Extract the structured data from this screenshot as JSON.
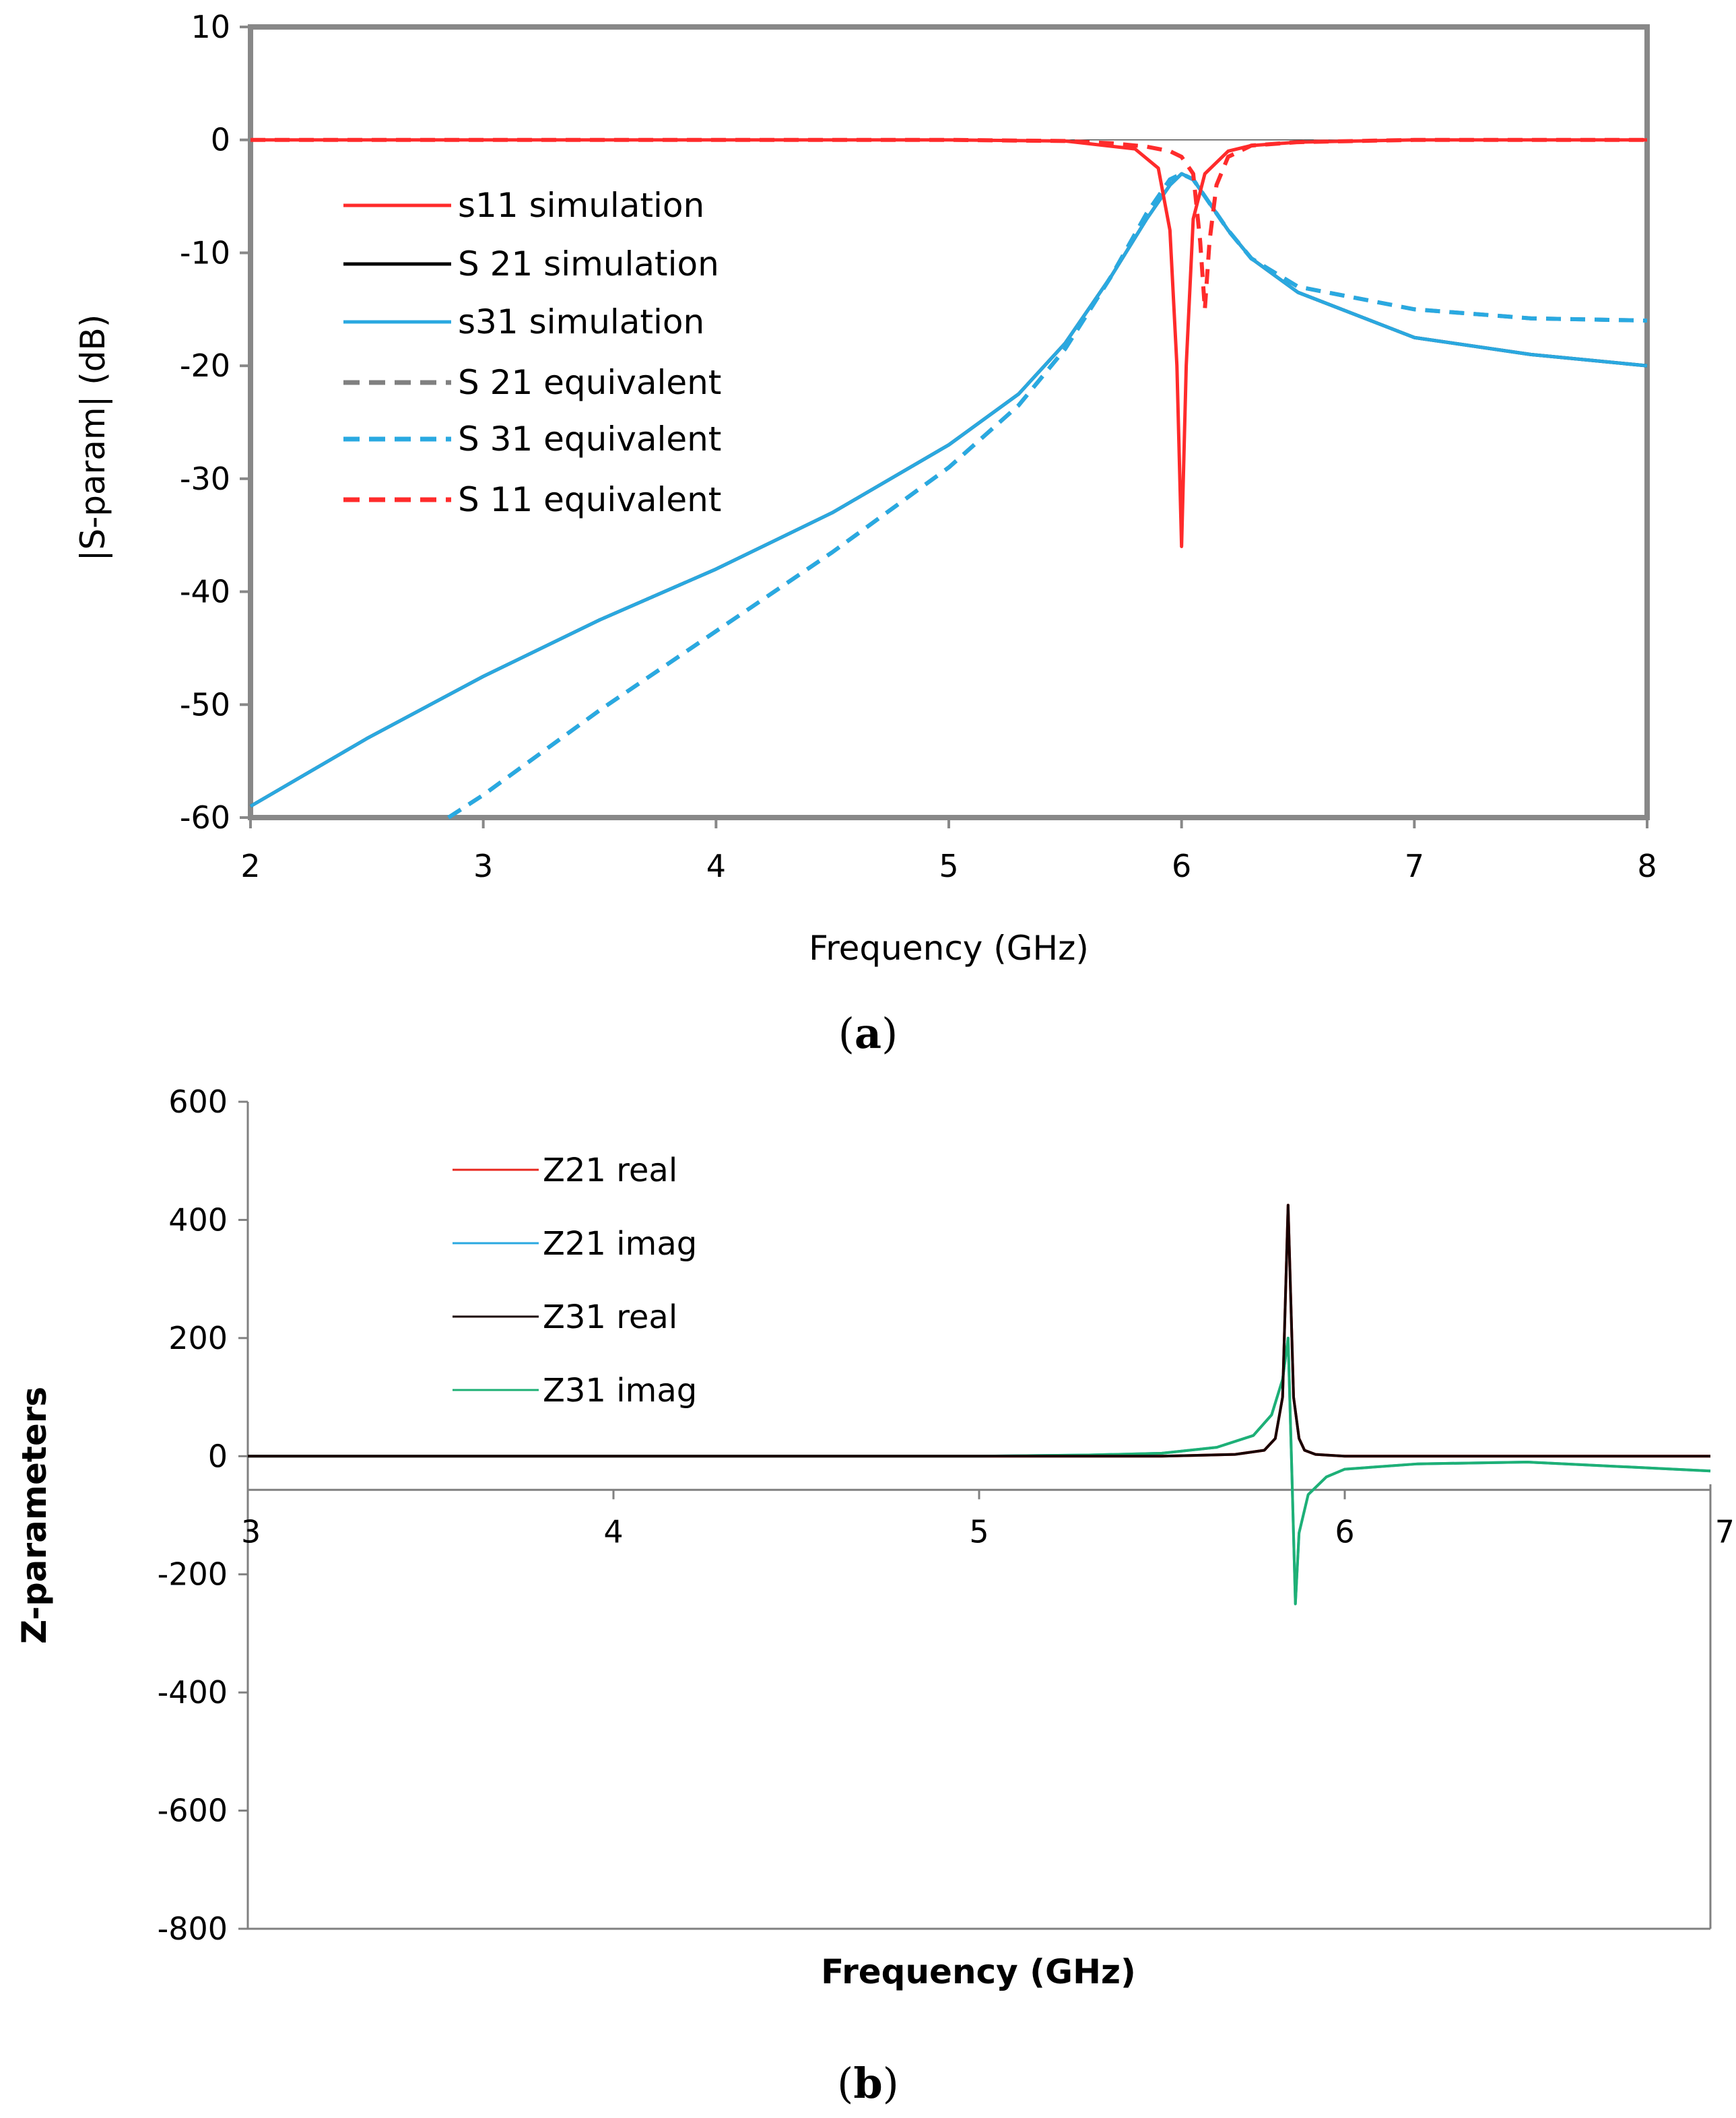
{
  "chart_data": [
    {
      "panel": "(a)",
      "caption_letter": "a",
      "type": "line",
      "xlabel": "Frequency (GHz)",
      "ylabel": "|S-param| (dB)",
      "xlim": [
        2,
        8
      ],
      "ylim": [
        -60,
        10
      ],
      "xticks": [
        2,
        3,
        4,
        5,
        6,
        7,
        8
      ],
      "yticks": [
        10,
        0,
        -10,
        -20,
        -30,
        -40,
        -50,
        -60
      ],
      "series": [
        {
          "name": "s11 simulation",
          "color": "#ff2b2b",
          "dash": "solid",
          "x": [
            2,
            4,
            5,
            5.5,
            5.8,
            5.9,
            5.95,
            5.98,
            6.0,
            6.02,
            6.05,
            6.1,
            6.2,
            6.3,
            6.5,
            7,
            8
          ],
          "y": [
            0,
            0,
            0,
            -0.1,
            -0.8,
            -2.5,
            -8,
            -20,
            -36,
            -20,
            -7,
            -3,
            -1,
            -0.5,
            -0.2,
            0,
            0
          ]
        },
        {
          "name": "S 21 simulation",
          "color": "#000000",
          "dash": "solid",
          "x": [
            2,
            2.5,
            3,
            3.5,
            4,
            4.5,
            5,
            5.3,
            5.5,
            5.7,
            5.85,
            5.95,
            6.0,
            6.05,
            6.1,
            6.2,
            6.3,
            6.5,
            7,
            7.5,
            8
          ],
          "y": [
            -59,
            -53,
            -47.5,
            -42.5,
            -38,
            -33,
            -27,
            -22.5,
            -18,
            -12,
            -7,
            -4,
            -3,
            -3.5,
            -5,
            -8,
            -10.5,
            -13.5,
            -17.5,
            -19,
            -20
          ]
        },
        {
          "name": "s31 simulation",
          "color": "#2aa8e0",
          "dash": "solid",
          "x": [
            2,
            2.5,
            3,
            3.5,
            4,
            4.5,
            5,
            5.3,
            5.5,
            5.7,
            5.85,
            5.95,
            6.0,
            6.05,
            6.1,
            6.2,
            6.3,
            6.5,
            7,
            7.5,
            8
          ],
          "y": [
            -59,
            -53,
            -47.5,
            -42.5,
            -38,
            -33,
            -27,
            -22.5,
            -18,
            -12,
            -7,
            -4,
            -3,
            -3.5,
            -5,
            -8,
            -10.5,
            -13.5,
            -17.5,
            -19,
            -20
          ]
        },
        {
          "name": "S 21 equivalent",
          "color": "#808080",
          "dash": "dashed",
          "x": [
            2.85,
            3,
            3.5,
            4,
            4.5,
            5,
            5.3,
            5.5,
            5.7,
            5.85,
            5.95,
            6.0,
            6.05,
            6.1,
            6.2,
            6.3,
            6.5,
            7,
            7.5,
            8
          ],
          "y": [
            -60,
            -58,
            -50.5,
            -43.5,
            -36.5,
            -29,
            -23.5,
            -18.5,
            -12,
            -6.5,
            -3.5,
            -3,
            -3.5,
            -5,
            -8,
            -10.5,
            -13,
            -15,
            -15.8,
            -16
          ]
        },
        {
          "name": "S 31 equivalent",
          "color": "#29a9e1",
          "dash": "dashed",
          "x": [
            2.85,
            3,
            3.5,
            4,
            4.5,
            5,
            5.3,
            5.5,
            5.7,
            5.85,
            5.95,
            6.0,
            6.05,
            6.1,
            6.2,
            6.3,
            6.5,
            7,
            7.5,
            8
          ],
          "y": [
            -60,
            -58,
            -50.5,
            -43.5,
            -36.5,
            -29,
            -23.5,
            -18.5,
            -12,
            -6.5,
            -3.5,
            -3,
            -3.5,
            -5,
            -8,
            -10.5,
            -13,
            -15,
            -15.8,
            -16
          ]
        },
        {
          "name": "S 11 equivalent",
          "color": "#ff2b2b",
          "dash": "dashed",
          "x": [
            2,
            4,
            5,
            5.5,
            5.7,
            5.85,
            5.95,
            6.0,
            6.05,
            6.08,
            6.1,
            6.12,
            6.15,
            6.2,
            6.3,
            6.5,
            7,
            8
          ],
          "y": [
            0,
            0,
            0,
            -0.1,
            -0.3,
            -0.6,
            -1,
            -1.5,
            -3,
            -9,
            -15,
            -9,
            -4,
            -1.5,
            -0.5,
            -0.2,
            0,
            0
          ]
        }
      ],
      "legend": [
        "s11 simulation",
        "S 21 simulation",
        "s31 simulation",
        "S 21 equivalent",
        "S 31 equivalent",
        "S 11 equivalent"
      ]
    },
    {
      "panel": "(b)",
      "caption_letter": "b",
      "type": "line",
      "xlabel": "Frequency (GHz)",
      "ylabel": "Z-parameters",
      "xlim": [
        3,
        7
      ],
      "ylim": [
        -800,
        600
      ],
      "xticks": [
        3,
        4,
        5,
        6,
        7
      ],
      "yticks": [
        600,
        400,
        200,
        0,
        -200,
        -400,
        -600,
        -800
      ],
      "series": [
        {
          "name": "Z21 real",
          "color": "#e8271e",
          "dash": "solid",
          "x": [
            3,
            5,
            5.5,
            5.7,
            5.78,
            5.81,
            5.83,
            5.845,
            5.86,
            5.875,
            5.89,
            5.92,
            6.0,
            6.5,
            7
          ],
          "y": [
            0,
            0,
            0,
            3,
            10,
            30,
            100,
            425,
            100,
            30,
            10,
            3,
            0,
            0,
            0
          ]
        },
        {
          "name": "Z21 imag",
          "color": "#2aa8e0",
          "dash": "solid",
          "x": [
            3,
            5,
            5.3,
            5.5,
            5.65,
            5.75,
            5.8,
            5.83,
            5.845,
            5.855,
            5.865,
            5.875,
            5.9,
            5.95,
            6.0,
            6.2,
            6.5,
            7
          ],
          "y": [
            0,
            0,
            2,
            5,
            15,
            35,
            70,
            130,
            200,
            -20,
            -250,
            -130,
            -65,
            -35,
            -22,
            -13,
            -10,
            -25
          ]
        },
        {
          "name": "Z31 real",
          "color": "#1a0000",
          "dash": "solid",
          "x": [
            3,
            5,
            5.5,
            5.7,
            5.78,
            5.81,
            5.83,
            5.845,
            5.86,
            5.875,
            5.89,
            5.92,
            6.0,
            6.5,
            7
          ],
          "y": [
            0,
            0,
            0,
            3,
            10,
            30,
            100,
            425,
            100,
            30,
            10,
            3,
            0,
            0,
            0
          ]
        },
        {
          "name": "Z31 imag",
          "color": "#1eb075",
          "dash": "solid",
          "x": [
            3,
            5,
            5.3,
            5.5,
            5.65,
            5.75,
            5.8,
            5.83,
            5.845,
            5.855,
            5.865,
            5.875,
            5.9,
            5.95,
            6.0,
            6.2,
            6.5,
            7
          ],
          "y": [
            0,
            0,
            2,
            5,
            15,
            35,
            70,
            130,
            200,
            -20,
            -250,
            -130,
            -65,
            -35,
            -22,
            -13,
            -10,
            -25
          ]
        }
      ],
      "legend": [
        "Z21 real",
        "Z21 imag",
        "Z31 real",
        "Z31 imag"
      ]
    }
  ]
}
